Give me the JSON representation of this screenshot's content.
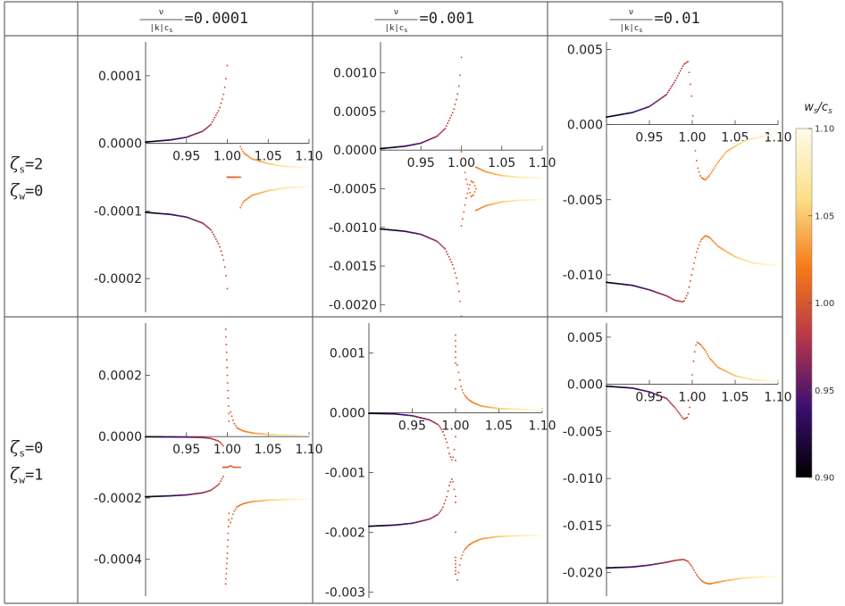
{
  "grid": {
    "col_headers": [
      {
        "numerator": "ν",
        "denominator": "|k|c",
        "denominator_sub": "s",
        "relation": "=",
        "value": "0.0001"
      },
      {
        "numerator": "ν",
        "denominator": "|k|c",
        "denominator_sub": "s",
        "relation": "=",
        "value": "0.001"
      },
      {
        "numerator": "ν",
        "denominator": "|k|c",
        "denominator_sub": "s",
        "relation": "=",
        "value": "0.01"
      }
    ],
    "row_headers": [
      {
        "line1_symbol": "ζ",
        "line1_sub": "s",
        "line1_value": "=2",
        "line2_symbol": "ζ",
        "line2_sub": "w",
        "line2_value": "=0"
      },
      {
        "line1_symbol": "ζ",
        "line1_sub": "s",
        "line1_value": "=0",
        "line2_symbol": "ζ",
        "line2_sub": "w",
        "line2_value": "=1"
      }
    ]
  },
  "colorbar": {
    "title_main": "w",
    "title_main_sub": "s",
    "title_sep": "/c",
    "title_den_sub": "s",
    "ticks": [
      "0.90",
      "0.95",
      "1.00",
      "1.05",
      "1.10"
    ],
    "range": [
      0.9,
      1.1
    ],
    "colormap": [
      "#000000",
      "#3b0f70",
      "#b6364a",
      "#f57a16",
      "#fbe08a",
      "#fffbe8"
    ]
  },
  "chart_data": [
    {
      "type": "scatter",
      "row": 0,
      "col": 0,
      "xlim": [
        0.9,
        1.1
      ],
      "ylim": [
        -0.00025,
        0.00015
      ],
      "xticks": [
        "0.95",
        "1.00",
        "1.05",
        "1.10"
      ],
      "yticks": [
        "0.0001",
        "0.0000",
        "-0.0001",
        "-0.0002"
      ],
      "series": [
        {
          "x": [
            0.9,
            0.93,
            0.95,
            0.97,
            0.98,
            0.99,
            0.995,
            0.998,
            1.0
          ],
          "y": [
            2e-06,
            5e-06,
            9e-06,
            1.8e-05,
            2.8e-05,
            5e-05,
            7e-05,
            9e-05,
            0.000115
          ]
        },
        {
          "x": [
            0.9,
            0.93,
            0.95,
            0.97,
            0.98,
            0.99,
            0.995,
            0.998,
            1.0
          ],
          "y": [
            -0.000102,
            -0.000105,
            -0.000109,
            -0.000118,
            -0.000128,
            -0.00015,
            -0.00017,
            -0.00019,
            -0.000215
          ]
        },
        {
          "x": [
            1.0,
            1.004,
            1.008,
            1.012,
            1.016
          ],
          "y": [
            -5e-05,
            -5e-05,
            -5e-05,
            -5e-05,
            -5e-05
          ]
        },
        {
          "x": [
            1.016,
            1.02,
            1.03,
            1.05,
            1.07,
            1.1
          ],
          "y": [
            -5e-06,
            -1.4e-05,
            -2.3e-05,
            -3e-05,
            -3.4e-05,
            -3.6e-05
          ]
        },
        {
          "x": [
            1.016,
            1.02,
            1.03,
            1.05,
            1.07,
            1.1
          ],
          "y": [
            -9.5e-05,
            -8.6e-05,
            -7.7e-05,
            -7e-05,
            -6.6e-05,
            -6.4e-05
          ]
        }
      ]
    },
    {
      "type": "scatter",
      "row": 0,
      "col": 1,
      "xlim": [
        0.9,
        1.1
      ],
      "ylim": [
        -0.0021,
        0.0014
      ],
      "xticks": [
        "0.95",
        "1.00",
        "1.05",
        "1.10"
      ],
      "yticks": [
        "0.0010",
        "0.0005",
        "0.0000",
        "-0.0005",
        "-0.0010",
        "-0.0015",
        "-0.0020"
      ],
      "series": [
        {
          "x": [
            0.9,
            0.93,
            0.95,
            0.97,
            0.98,
            0.99,
            0.995,
            0.998,
            1.0
          ],
          "y": [
            2e-05,
            5e-05,
            9e-05,
            0.00018,
            0.00028,
            0.0005,
            0.0007,
            0.0009,
            0.0012
          ]
        },
        {
          "x": [
            0.9,
            0.93,
            0.95,
            0.97,
            0.98,
            0.99,
            0.995,
            0.998,
            1.0
          ],
          "y": [
            -0.00102,
            -0.00105,
            -0.00109,
            -0.00118,
            -0.00128,
            -0.0015,
            -0.0017,
            -0.0019,
            -0.00215
          ]
        },
        {
          "x": [
            1.0,
            1.003,
            1.006,
            1.009,
            1.012,
            1.015,
            1.018
          ],
          "y": [
            -2e-05,
            -0.0002,
            -0.00038,
            -0.0005,
            -0.0006,
            -0.00058,
            -0.0005
          ]
        },
        {
          "x": [
            1.0,
            1.003,
            1.006,
            1.009,
            1.012,
            1.015,
            1.018
          ],
          "y": [
            -0.00098,
            -0.0008,
            -0.00062,
            -0.0005,
            -0.0004,
            -0.00042,
            -0.0005
          ]
        },
        {
          "x": [
            1.018,
            1.03,
            1.05,
            1.07,
            1.1
          ],
          "y": [
            -0.00022,
            -0.00028,
            -0.00033,
            -0.00035,
            -0.00036
          ]
        },
        {
          "x": [
            1.018,
            1.03,
            1.05,
            1.07,
            1.1
          ],
          "y": [
            -0.00078,
            -0.00072,
            -0.00067,
            -0.00065,
            -0.00064
          ]
        }
      ]
    },
    {
      "type": "scatter",
      "row": 0,
      "col": 2,
      "xlim": [
        0.9,
        1.1
      ],
      "ylim": [
        -0.0125,
        0.0055
      ],
      "xticks": [
        "0.95",
        "1.00",
        "1.05",
        "1.10"
      ],
      "yticks": [
        "0.005",
        "0.000",
        "-0.005",
        "-0.010"
      ],
      "series": [
        {
          "x": [
            0.9,
            0.93,
            0.95,
            0.97,
            0.98,
            0.99,
            0.995,
            1.0,
            1.002,
            1.006,
            1.01,
            1.015,
            1.02,
            1.03,
            1.04,
            1.06,
            1.08,
            1.1
          ],
          "y": [
            0.0005,
            0.0008,
            0.0012,
            0.002,
            0.0029,
            0.004,
            0.0042,
            0.0015,
            -0.001,
            -0.0028,
            -0.0035,
            -0.0037,
            -0.0034,
            -0.0025,
            -0.0018,
            -0.0011,
            -0.0008,
            -0.0006
          ]
        },
        {
          "x": [
            0.9,
            0.93,
            0.95,
            0.97,
            0.98,
            0.99,
            0.995,
            1.0,
            1.005,
            1.01,
            1.015,
            1.02,
            1.03,
            1.05,
            1.07,
            1.1
          ],
          "y": [
            -0.0105,
            -0.0107,
            -0.011,
            -0.0114,
            -0.0117,
            -0.0118,
            -0.0112,
            -0.0098,
            -0.0085,
            -0.0077,
            -0.0074,
            -0.0075,
            -0.0081,
            -0.0088,
            -0.0092,
            -0.0094
          ]
        }
      ]
    },
    {
      "type": "scatter",
      "row": 1,
      "col": 0,
      "xlim": [
        0.9,
        1.1
      ],
      "ylim": [
        -0.00052,
        0.00037
      ],
      "xticks": [
        "0.95",
        "1.00",
        "1.05",
        "1.10"
      ],
      "yticks": [
        "0.0002",
        "0.0000",
        "-0.0002",
        "-0.0004"
      ],
      "series": [
        {
          "x": [
            0.9,
            0.93,
            0.95,
            0.97,
            0.98,
            0.99,
            0.995
          ],
          "y": [
            -5e-07,
            -1e-06,
            -1.5e-06,
            -3e-06,
            -6e-06,
            -1.5e-05,
            -3e-05
          ]
        },
        {
          "x": [
            0.9,
            0.93,
            0.95,
            0.97,
            0.98,
            0.99,
            0.995
          ],
          "y": [
            -0.000196,
            -0.000193,
            -0.00019,
            -0.000183,
            -0.000175,
            -0.000155,
            -0.00013
          ]
        },
        {
          "x": [
            0.995,
            0.998,
            1.0,
            1.004,
            1.008,
            1.012,
            1.016
          ],
          "y": [
            -0.0001,
            -0.0001,
            -0.0001,
            -9.5e-05,
            -0.0001,
            -0.0001,
            -0.0001
          ]
        },
        {
          "x": [
            0.998,
            1.0,
            1.002
          ],
          "y": [
            0.00035,
            0.0002,
            5e-05
          ]
        },
        {
          "x": [
            0.998,
            1.0,
            1.002
          ],
          "y": [
            -0.00048,
            -0.00038,
            -0.00025
          ]
        },
        {
          "x": [
            1.004,
            1.008,
            1.012,
            1.02,
            1.03,
            1.05,
            1.07,
            1.1
          ],
          "y": [
            8e-05,
            4.5e-05,
            2.8e-05,
            1.8e-05,
            1.2e-05,
            7e-06,
            5e-06,
            4e-06
          ]
        },
        {
          "x": [
            1.004,
            1.008,
            1.012,
            1.02,
            1.03,
            1.05,
            1.07,
            1.1
          ],
          "y": [
            -0.00028,
            -0.000245,
            -0.000228,
            -0.000218,
            -0.000212,
            -0.000207,
            -0.000205,
            -0.000204
          ]
        }
      ]
    },
    {
      "type": "scatter",
      "row": 1,
      "col": 1,
      "xlim": [
        0.9,
        1.1
      ],
      "ylim": [
        -0.0031,
        0.0015
      ],
      "xticks": [
        "0.95",
        "1.00",
        "1.05",
        "1.10"
      ],
      "yticks": [
        "0.001",
        "0.000",
        "-0.001",
        "-0.002",
        "-0.003"
      ],
      "series": [
        {
          "x": [
            0.9,
            0.93,
            0.95,
            0.97,
            0.98,
            0.985,
            0.99,
            0.993,
            0.996,
            0.998,
            1.0
          ],
          "y": [
            -1e-05,
            -2e-05,
            -5e-05,
            -0.00012,
            -0.0002,
            -0.0003,
            -0.0005,
            -0.0007,
            -0.0008,
            -0.0007,
            -0.0004
          ]
        },
        {
          "x": [
            0.9,
            0.93,
            0.95,
            0.97,
            0.98,
            0.985,
            0.99,
            0.993,
            0.996,
            0.998,
            1.0
          ],
          "y": [
            -0.0019,
            -0.00188,
            -0.00185,
            -0.00178,
            -0.0017,
            -0.0016,
            -0.0014,
            -0.0012,
            -0.0011,
            -0.0012,
            -0.0015
          ]
        },
        {
          "x": [
            1.0,
            1.0,
            1.0,
            1.0
          ],
          "y": [
            0.0013,
            0.0008,
            -0.0024,
            -0.0027
          ]
        },
        {
          "x": [
            1.002,
            1.006,
            1.01,
            1.015,
            1.02,
            1.03,
            1.05,
            1.07,
            1.1
          ],
          "y": [
            0.0008,
            0.00045,
            0.0003,
            0.00022,
            0.00017,
            0.00011,
            7e-05,
            6e-05,
            5e-05
          ]
        },
        {
          "x": [
            1.002,
            1.006,
            1.01,
            1.015,
            1.02,
            1.03,
            1.05,
            1.07,
            1.1
          ],
          "y": [
            -0.0028,
            -0.00245,
            -0.0023,
            -0.00222,
            -0.00217,
            -0.00211,
            -0.00207,
            -0.00206,
            -0.00205
          ]
        }
      ]
    },
    {
      "type": "scatter",
      "row": 1,
      "col": 2,
      "xlim": [
        0.9,
        1.1
      ],
      "ylim": [
        -0.0225,
        0.0065
      ],
      "xticks": [
        "0.95",
        "1.00",
        "1.05",
        "1.10"
      ],
      "yticks": [
        "0.005",
        "0.000",
        "-0.005",
        "-0.010",
        "-0.015",
        "-0.020"
      ],
      "series": [
        {
          "x": [
            0.9,
            0.93,
            0.95,
            0.97,
            0.98,
            0.99,
            0.995,
            0.998,
            1.0
          ],
          "y": [
            -0.0002,
            -0.0004,
            -0.0008,
            -0.0015,
            -0.0025,
            -0.0037,
            -0.0035,
            -0.002,
            0.0
          ]
        },
        {
          "x": [
            1.0,
            1.002,
            1.005,
            1.01,
            1.015,
            1.02,
            1.03,
            1.05,
            1.07,
            1.1
          ],
          "y": [
            0.001,
            0.003,
            0.0045,
            0.0042,
            0.0036,
            0.0028,
            0.0018,
            0.0009,
            0.0005,
            0.0003
          ]
        },
        {
          "x": [
            0.9,
            0.93,
            0.95,
            0.97,
            0.98,
            0.99,
            0.995,
            1.0,
            1.005,
            1.01,
            1.015,
            1.02,
            1.03,
            1.05,
            1.07,
            1.1
          ],
          "y": [
            -0.0195,
            -0.0194,
            -0.0192,
            -0.0189,
            -0.0187,
            -0.0186,
            -0.0188,
            -0.0194,
            -0.0202,
            -0.0208,
            -0.0211,
            -0.0212,
            -0.021,
            -0.0207,
            -0.0205,
            -0.0204
          ]
        }
      ]
    }
  ]
}
